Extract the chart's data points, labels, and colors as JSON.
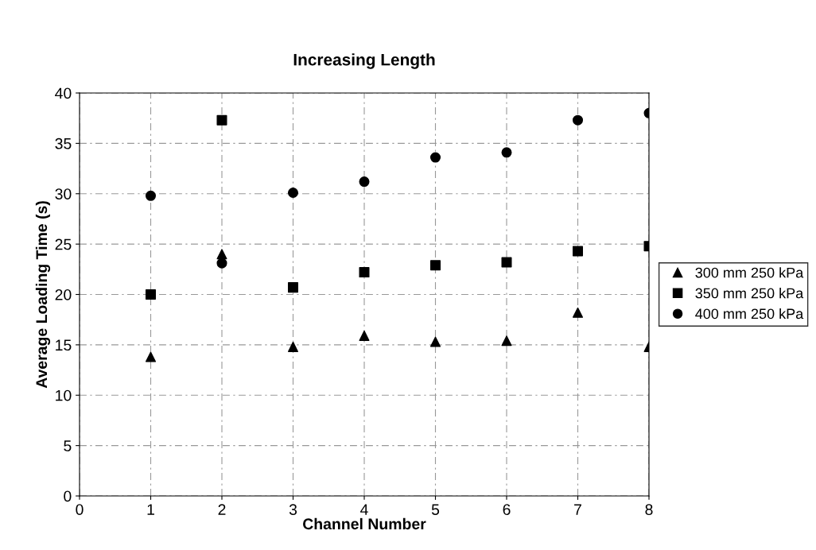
{
  "chart_data": {
    "type": "scatter",
    "title": "Increasing Length",
    "xlabel": "Channel Number",
    "ylabel": "Average Loading Time (s)",
    "x": [
      1,
      2,
      3,
      4,
      5,
      6,
      7,
      8
    ],
    "series": [
      {
        "name": "300 mm 250 kPa",
        "color": "#000000",
        "marker": "triangle",
        "values": [
          13.8,
          24.0,
          14.8,
          15.9,
          15.3,
          15.4,
          18.2,
          14.8
        ]
      },
      {
        "name": "350 mm 250 kPa",
        "color": "#000000",
        "marker": "square",
        "values": [
          20.0,
          37.3,
          20.7,
          22.2,
          22.9,
          23.2,
          24.3,
          24.8
        ]
      },
      {
        "name": "400 mm 250 kPa",
        "color": "#000000",
        "marker": "circle",
        "values": [
          29.8,
          23.1,
          30.1,
          31.2,
          33.6,
          34.1,
          37.3,
          38.0
        ]
      }
    ],
    "xlim": [
      0,
      8
    ],
    "xticks": [
      0,
      1,
      2,
      3,
      4,
      5,
      6,
      7,
      8
    ],
    "ylim": [
      0,
      40
    ],
    "yticks": [
      0,
      5,
      10,
      15,
      20,
      25,
      30,
      35,
      40
    ],
    "grid": true,
    "legend": "right"
  }
}
